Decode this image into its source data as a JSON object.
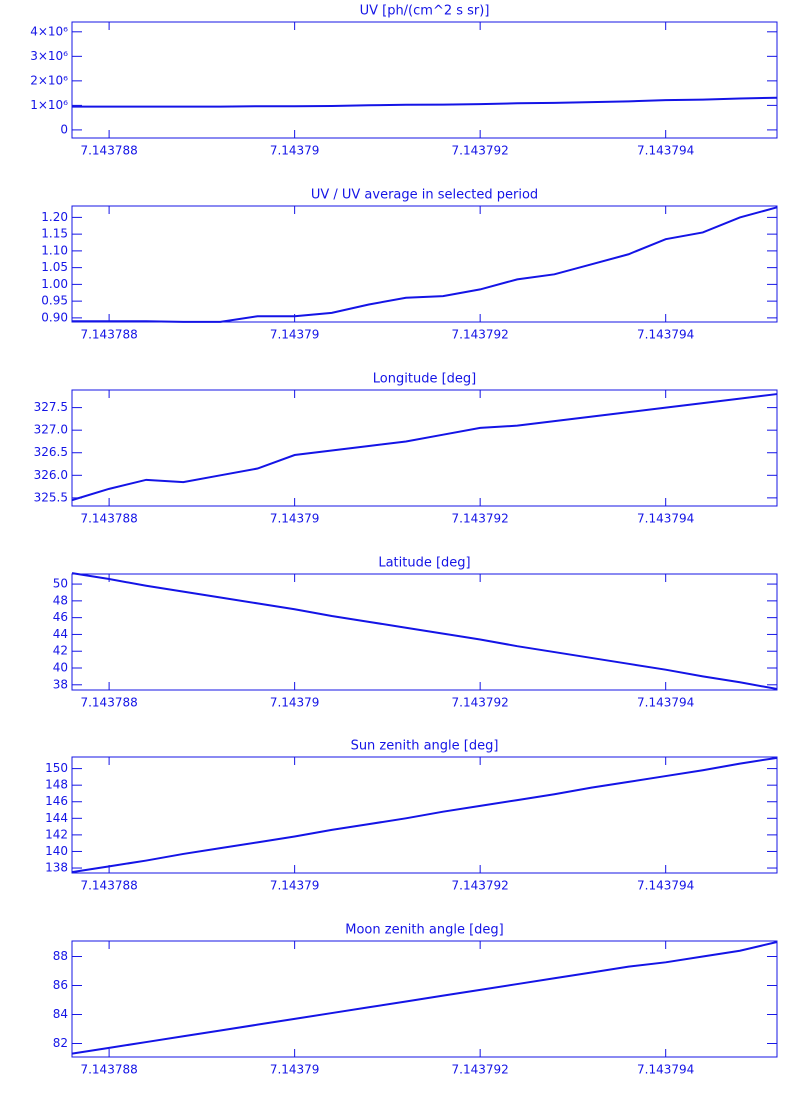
{
  "chart_data": [
    {
      "type": "line",
      "title": "UV [ph/(cm^2 s sr)]",
      "color": "#1414e6",
      "x": [
        7.1437876,
        7.143788,
        7.1437884,
        7.1437888,
        7.1437892,
        7.1437896,
        7.14379,
        7.1437904,
        7.1437908,
        7.1437912,
        7.1437916,
        7.143792,
        7.1437924,
        7.1437928,
        7.1437932,
        7.1437936,
        7.143794,
        7.1437944,
        7.1437948,
        7.1437952
      ],
      "values": [
        950000,
        950000,
        950000,
        948000,
        948000,
        966000,
        966000,
        977000,
        1005000,
        1026000,
        1031000,
        1053000,
        1085000,
        1101000,
        1133000,
        1165000,
        1213000,
        1235000,
        1283000,
        1310000
      ],
      "xlim": [
        7.1437876,
        7.1437952
      ],
      "xticks": [
        7.143788,
        7.14379,
        7.143792,
        7.143794
      ],
      "ylim": [
        -330000,
        4400000
      ],
      "yticks": [
        {
          "value": 0,
          "label": "0"
        },
        {
          "value": 1000000,
          "label": "1×10⁶"
        },
        {
          "value": 2000000,
          "label": "2×10⁶"
        },
        {
          "value": 3000000,
          "label": "3×10⁶"
        },
        {
          "value": 4000000,
          "label": "4×10⁶"
        }
      ]
    },
    {
      "type": "line",
      "title": "UV / UV average in selected period",
      "color": "#1414e6",
      "x": [
        7.1437876,
        7.143788,
        7.1437884,
        7.1437888,
        7.1437892,
        7.1437896,
        7.14379,
        7.1437904,
        7.1437908,
        7.1437912,
        7.1437916,
        7.143792,
        7.1437924,
        7.1437928,
        7.1437932,
        7.1437936,
        7.143794,
        7.1437944,
        7.1437948,
        7.1437952
      ],
      "values": [
        0.89,
        0.89,
        0.89,
        0.888,
        0.888,
        0.905,
        0.905,
        0.915,
        0.94,
        0.96,
        0.965,
        0.985,
        1.015,
        1.03,
        1.06,
        1.09,
        1.135,
        1.155,
        1.2,
        1.23
      ],
      "xlim": [
        7.1437876,
        7.1437952
      ],
      "xticks": [
        7.143788,
        7.14379,
        7.143792,
        7.143794
      ],
      "ylim": [
        0.8877,
        1.234
      ],
      "yticks": [
        {
          "value": 0.9,
          "label": "0.90"
        },
        {
          "value": 0.95,
          "label": "0.95"
        },
        {
          "value": 1,
          "label": "1.00"
        },
        {
          "value": 1.05,
          "label": "1.05"
        },
        {
          "value": 1.1,
          "label": "1.10"
        },
        {
          "value": 1.15,
          "label": "1.15"
        },
        {
          "value": 1.2,
          "label": "1.20"
        }
      ]
    },
    {
      "type": "line",
      "title": "Longitude [deg]",
      "color": "#1414e6",
      "x": [
        7.1437876,
        7.143788,
        7.1437884,
        7.1437888,
        7.1437892,
        7.1437896,
        7.14379,
        7.1437904,
        7.1437908,
        7.1437912,
        7.1437916,
        7.143792,
        7.1437924,
        7.1437928,
        7.1437932,
        7.1437936,
        7.143794,
        7.1437944,
        7.1437948,
        7.1437952
      ],
      "values": [
        325.45,
        325.7,
        325.9,
        325.85,
        326.0,
        326.15,
        326.45,
        326.55,
        326.65,
        326.75,
        326.9,
        327.05,
        327.1,
        327.2,
        327.3,
        327.4,
        327.5,
        327.6,
        327.7,
        327.8
      ],
      "xlim": [
        7.1437876,
        7.1437952
      ],
      "xticks": [
        7.143788,
        7.14379,
        7.143792,
        7.143794
      ],
      "ylim": [
        325.32,
        327.89
      ],
      "yticks": [
        325.5,
        {
          "value": 326,
          "label": "326.0"
        },
        326.5,
        {
          "value": 327,
          "label": "327.0"
        },
        327.5
      ]
    },
    {
      "type": "line",
      "title": "Latitude [deg]",
      "color": "#1414e6",
      "x": [
        7.1437876,
        7.143788,
        7.1437884,
        7.1437888,
        7.1437892,
        7.1437896,
        7.14379,
        7.1437904,
        7.1437908,
        7.1437912,
        7.1437916,
        7.143792,
        7.1437924,
        7.1437928,
        7.1437932,
        7.1437936,
        7.143794,
        7.1437944,
        7.1437948,
        7.1437952
      ],
      "values": [
        51.3,
        50.6,
        49.8,
        49.1,
        48.4,
        47.7,
        47.0,
        46.2,
        45.5,
        44.8,
        44.1,
        43.4,
        42.6,
        41.9,
        41.2,
        40.5,
        39.8,
        39.0,
        38.3,
        37.5
      ],
      "xlim": [
        7.1437876,
        7.1437952
      ],
      "xticks": [
        7.143788,
        7.14379,
        7.143792,
        7.143794
      ],
      "ylim": [
        37.38,
        51.2
      ],
      "yticks": [
        38,
        40,
        42,
        44,
        46,
        48,
        50
      ]
    },
    {
      "type": "line",
      "title": "Sun zenith angle [deg]",
      "color": "#1414e6",
      "x": [
        7.1437876,
        7.143788,
        7.1437884,
        7.1437888,
        7.1437892,
        7.1437896,
        7.14379,
        7.1437904,
        7.1437908,
        7.1437912,
        7.1437916,
        7.143792,
        7.1437924,
        7.1437928,
        7.1437932,
        7.1437936,
        7.143794,
        7.1437944,
        7.1437948,
        7.1437952
      ],
      "values": [
        137.5,
        138.2,
        138.9,
        139.7,
        140.4,
        141.1,
        141.8,
        142.6,
        143.3,
        144.0,
        144.8,
        145.5,
        146.2,
        146.9,
        147.7,
        148.4,
        149.1,
        149.8,
        150.6,
        151.3
      ],
      "xlim": [
        7.1437876,
        7.1437952
      ],
      "xticks": [
        7.143788,
        7.14379,
        7.143792,
        7.143794
      ],
      "ylim": [
        137.4,
        151.4
      ],
      "yticks": [
        138,
        140,
        142,
        144,
        146,
        148,
        150
      ]
    },
    {
      "type": "line",
      "title": "Moon zenith angle [deg]",
      "color": "#1414e6",
      "x": [
        7.1437876,
        7.143788,
        7.1437884,
        7.1437888,
        7.1437892,
        7.1437896,
        7.14379,
        7.1437904,
        7.1437908,
        7.1437912,
        7.1437916,
        7.143792,
        7.1437924,
        7.1437928,
        7.1437932,
        7.1437936,
        7.143794,
        7.1437944,
        7.1437948,
        7.1437952
      ],
      "values": [
        81.3,
        81.7,
        82.1,
        82.5,
        82.9,
        83.3,
        83.7,
        84.1,
        84.5,
        84.9,
        85.3,
        85.7,
        86.1,
        86.5,
        86.9,
        87.3,
        87.6,
        88.0,
        88.4,
        89.0
      ],
      "xlim": [
        7.1437876,
        7.1437952
      ],
      "xticks": [
        7.143788,
        7.14379,
        7.143792,
        7.143794
      ],
      "ylim": [
        81.07,
        89.07
      ],
      "yticks": [
        82,
        84,
        86,
        88
      ]
    }
  ]
}
